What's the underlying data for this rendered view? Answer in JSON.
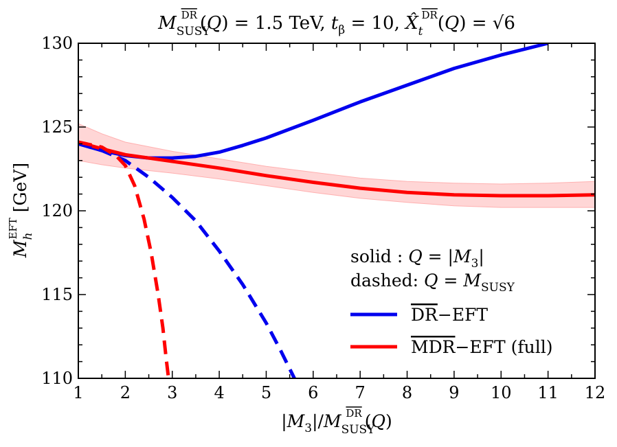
{
  "chart_data": {
    "type": "line",
    "title": "M_SUSY^DR(Q) = 1.5 TeV, t_β = 10, X̂_t^DR(Q) = √6",
    "xlabel": "|M3| / M_SUSY^DR(Q)",
    "ylabel": "M_h^EFT [GeV]",
    "xlim": [
      1,
      12
    ],
    "ylim": [
      110,
      130
    ],
    "x_ticks": [
      "1",
      "2",
      "3",
      "4",
      "5",
      "6",
      "7",
      "8",
      "9",
      "10",
      "11",
      "12"
    ],
    "y_ticks": [
      "110",
      "115",
      "120",
      "125",
      "130"
    ],
    "grid": false,
    "legend_position": "lower-right",
    "annotation_lines": [
      "solid   : Q = |M3|",
      "dashed: Q = M_SUSY"
    ],
    "colors": {
      "dr_eft": "#0000ee",
      "mdr_eft": "#ff0000",
      "band": "#ffd6d6",
      "band_edge": "#ffb0b0"
    },
    "series": [
      {
        "name": "DR−EFT",
        "style": "solid",
        "color": "#0000ee",
        "x": [
          1,
          1.5,
          2,
          2.5,
          3,
          3.5,
          4,
          4.5,
          5,
          6,
          7,
          8,
          9,
          10,
          11
        ],
        "y": [
          124.0,
          123.6,
          123.3,
          123.15,
          123.15,
          123.25,
          123.5,
          123.9,
          124.35,
          125.4,
          126.5,
          127.5,
          128.5,
          129.3,
          130.0
        ]
      },
      {
        "name": "MDR−EFT (full)",
        "style": "solid",
        "color": "#ff0000",
        "x": [
          1,
          1.5,
          2,
          3,
          4,
          5,
          6,
          7,
          8,
          9,
          10,
          11,
          12
        ],
        "y": [
          124.1,
          123.7,
          123.35,
          122.95,
          122.55,
          122.1,
          121.7,
          121.35,
          121.1,
          120.95,
          120.9,
          120.9,
          120.95
        ]
      },
      {
        "name": "DR−EFT, Q = M_SUSY",
        "style": "dashed",
        "color": "#0000ee",
        "x": [
          1,
          1.5,
          2,
          2.5,
          3,
          3.5,
          4,
          4.5,
          5,
          5.3,
          5.6
        ],
        "y": [
          124.0,
          123.6,
          123.0,
          122.0,
          120.8,
          119.4,
          117.6,
          115.6,
          113.3,
          111.7,
          110.0
        ]
      },
      {
        "name": "MDR−EFT, Q = M_SUSY",
        "style": "dashed",
        "color": "#ff0000",
        "x": [
          1,
          1.5,
          1.8,
          2.0,
          2.2,
          2.4,
          2.55,
          2.7,
          2.8,
          2.87,
          2.92
        ],
        "y": [
          124.1,
          123.8,
          123.3,
          122.7,
          121.5,
          119.5,
          117.5,
          115.0,
          113.0,
          111.2,
          110.0
        ]
      }
    ],
    "band": {
      "name": "MDR−EFT uncertainty",
      "x": [
        1,
        1.5,
        2,
        3,
        4,
        5,
        6,
        7,
        8,
        9,
        10,
        11,
        12
      ],
      "upper": [
        125.2,
        124.6,
        124.1,
        123.55,
        123.1,
        122.65,
        122.3,
        121.95,
        121.75,
        121.65,
        121.6,
        121.65,
        121.75
      ],
      "lower": [
        123.0,
        122.75,
        122.55,
        122.25,
        121.9,
        121.5,
        121.1,
        120.75,
        120.5,
        120.3,
        120.2,
        120.2,
        120.2
      ]
    }
  }
}
